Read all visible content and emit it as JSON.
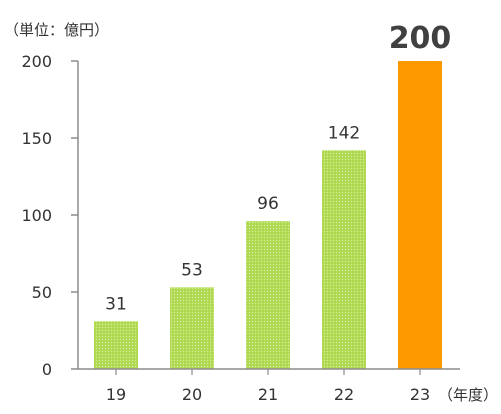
{
  "chart_data": {
    "type": "bar",
    "unit_label": "（単位：億円）",
    "x_unit_label": "（年度）",
    "categories": [
      "19",
      "20",
      "21",
      "22",
      "23"
    ],
    "values": [
      31,
      53,
      96,
      142,
      200
    ],
    "data_labels": [
      "31",
      "53",
      "96",
      "142",
      "200"
    ],
    "highlight_index": 4,
    "ylim": [
      0,
      200
    ],
    "y_ticks": [
      0,
      50,
      100,
      150,
      200
    ],
    "grid": false,
    "legend": "none",
    "colors": {
      "bar": "#b5dd5a",
      "highlight": "#ff9900",
      "axis": "#8c8c8c",
      "text": "#333333",
      "highlight_label": "#404040"
    }
  }
}
